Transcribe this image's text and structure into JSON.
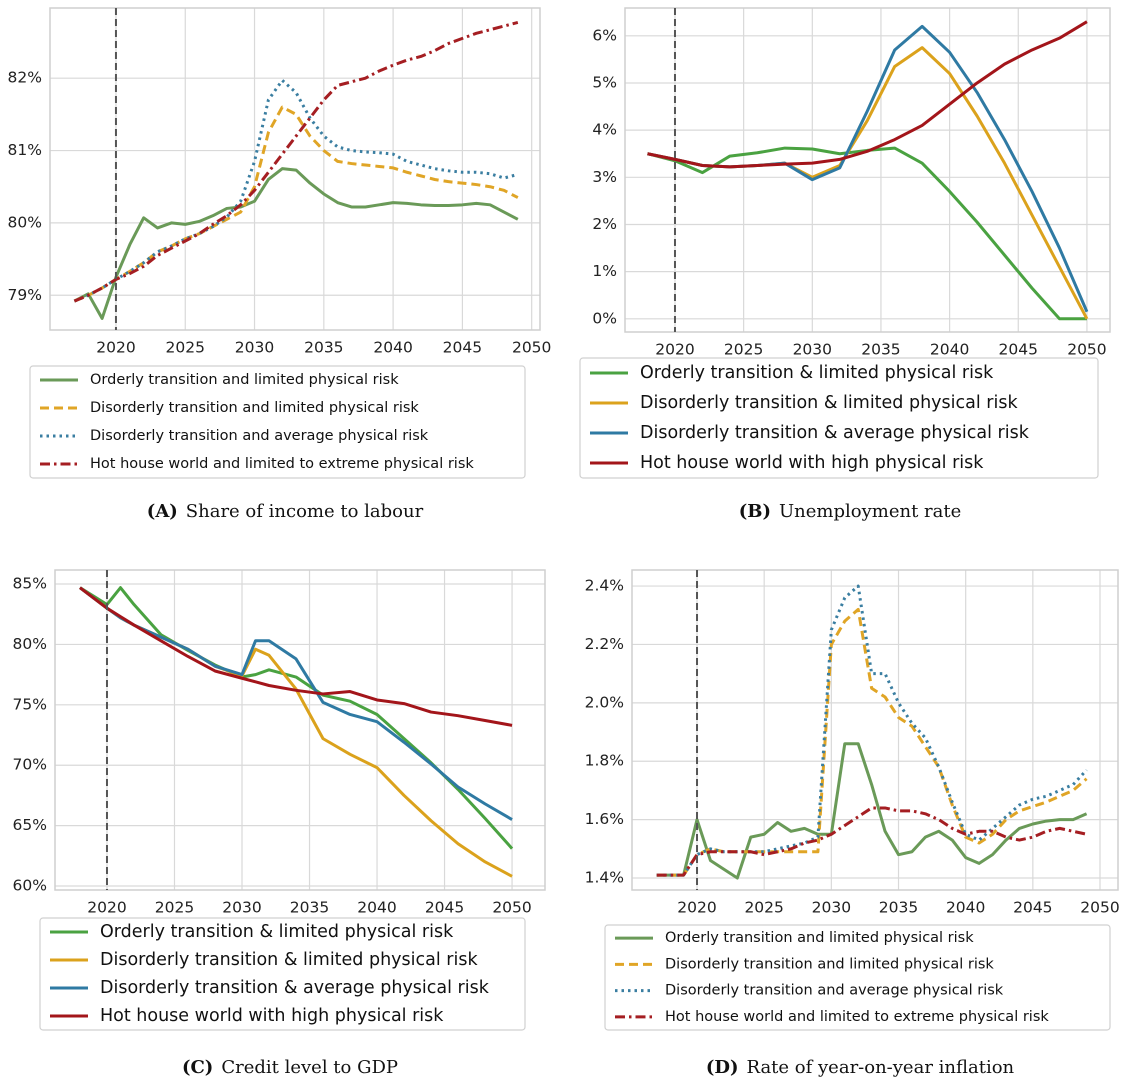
{
  "chart_data": [
    {
      "type": "line",
      "caption_label": "(A)",
      "caption": "Share of income to labour",
      "grid": true,
      "legend": "below",
      "vline": 2020,
      "xlim": [
        2015.24,
        2050.6
      ],
      "ylim": [
        78.52,
        82.97
      ],
      "xticks": [
        2020,
        2025,
        2030,
        2035,
        2040,
        2045,
        2050
      ],
      "yticks": [
        {
          "value": 79,
          "label": "79%"
        },
        {
          "value": 80,
          "label": "80%"
        },
        {
          "value": 81,
          "label": "81%"
        },
        {
          "value": 82,
          "label": "82%"
        }
      ],
      "x": [
        2017,
        2018,
        2019,
        2020,
        2021,
        2022,
        2023,
        2024,
        2025,
        2026,
        2027,
        2028,
        2029,
        2030,
        2031,
        2032,
        2033,
        2034,
        2035,
        2036,
        2037,
        2038,
        2039,
        2040,
        2041,
        2042,
        2043,
        2044,
        2045,
        2046,
        2047,
        2048,
        2049
      ],
      "series": [
        {
          "name": "Orderly transition and limited physical risk",
          "color": "#6a9a58",
          "dash": "solid",
          "values": [
            78.92,
            79.02,
            78.68,
            79.25,
            79.7,
            80.07,
            79.93,
            80.0,
            79.98,
            80.02,
            80.1,
            80.2,
            80.22,
            80.3,
            80.6,
            80.75,
            80.73,
            80.55,
            80.4,
            80.28,
            80.22,
            80.22,
            80.25,
            80.28,
            80.27,
            80.25,
            80.24,
            80.24,
            80.25,
            80.27,
            80.25,
            80.15,
            80.05
          ]
        },
        {
          "name": "Disorderly transition and limited physical risk",
          "color": "#e0a526",
          "dash": "dashed",
          "values": [
            78.92,
            79.0,
            79.1,
            79.22,
            79.33,
            79.45,
            79.6,
            79.68,
            79.78,
            79.85,
            79.95,
            80.05,
            80.15,
            80.5,
            81.25,
            81.6,
            81.5,
            81.2,
            81.0,
            80.85,
            80.82,
            80.8,
            80.78,
            80.76,
            80.7,
            80.65,
            80.6,
            80.57,
            80.55,
            80.53,
            80.5,
            80.45,
            80.35
          ]
        },
        {
          "name": "Disorderly transition and average physical risk",
          "color": "#3a7ea1",
          "dash": "dotted",
          "values": [
            78.92,
            79.0,
            79.1,
            79.22,
            79.33,
            79.45,
            79.6,
            79.68,
            79.78,
            79.85,
            79.95,
            80.08,
            80.3,
            80.85,
            81.7,
            81.97,
            81.8,
            81.45,
            81.2,
            81.05,
            81.0,
            80.98,
            80.97,
            80.95,
            80.85,
            80.8,
            80.75,
            80.72,
            80.7,
            80.7,
            80.68,
            80.62,
            80.67
          ]
        },
        {
          "name": "Hot house world and limited to extreme physical risk",
          "color": "#a51e22",
          "dash": "dashdot",
          "values": [
            78.92,
            79.0,
            79.1,
            79.22,
            79.3,
            79.4,
            79.55,
            79.65,
            79.75,
            79.85,
            79.98,
            80.1,
            80.25,
            80.45,
            80.7,
            80.95,
            81.2,
            81.45,
            81.7,
            81.9,
            81.95,
            82.0,
            82.1,
            82.18,
            82.25,
            82.3,
            82.38,
            82.48,
            82.55,
            82.62,
            82.67,
            82.72,
            82.77
          ]
        }
      ]
    },
    {
      "type": "line",
      "caption_label": "(B)",
      "caption": "Unemployment rate",
      "grid": true,
      "legend": "below",
      "vline": 2020,
      "xlim": [
        2016.36,
        2051.68
      ],
      "ylim": [
        -0.28,
        6.59
      ],
      "xticks": [
        2020,
        2025,
        2030,
        2035,
        2040,
        2045,
        2050
      ],
      "yticks": [
        {
          "value": 0,
          "label": "0%"
        },
        {
          "value": 1,
          "label": "1%"
        },
        {
          "value": 2,
          "label": "2%"
        },
        {
          "value": 3,
          "label": "3%"
        },
        {
          "value": 4,
          "label": "4%"
        },
        {
          "value": 5,
          "label": "5%"
        },
        {
          "value": 6,
          "label": "6%"
        }
      ],
      "x": [
        2018,
        2020,
        2022,
        2024,
        2026,
        2028,
        2030,
        2032,
        2034,
        2036,
        2038,
        2040,
        2042,
        2044,
        2046,
        2048,
        2050
      ],
      "series": [
        {
          "name": "Orderly transition & limited physical risk",
          "color": "#4aa241",
          "dash": "solid",
          "values": [
            3.5,
            3.35,
            3.1,
            3.45,
            3.52,
            3.62,
            3.6,
            3.5,
            3.57,
            3.62,
            3.3,
            2.7,
            2.05,
            1.35,
            0.65,
            0.0,
            0.0
          ]
        },
        {
          "name": "Disorderly transition & limited physical risk",
          "color": "#dba21c",
          "dash": "solid",
          "values": [
            3.5,
            3.38,
            3.25,
            3.22,
            3.25,
            3.3,
            3.0,
            3.25,
            4.2,
            5.35,
            5.75,
            5.2,
            4.3,
            3.3,
            2.2,
            1.1,
            0.0
          ]
        },
        {
          "name": "Disorderly transition & average physical risk",
          "color": "#2f7aa3",
          "dash": "solid",
          "values": [
            3.5,
            3.38,
            3.25,
            3.22,
            3.25,
            3.3,
            2.95,
            3.2,
            4.4,
            5.7,
            6.2,
            5.65,
            4.8,
            3.8,
            2.7,
            1.5,
            0.15
          ]
        },
        {
          "name": "Hot house world with high physical risk",
          "color": "#a3151a",
          "dash": "solid",
          "values": [
            3.5,
            3.38,
            3.25,
            3.22,
            3.25,
            3.28,
            3.3,
            3.38,
            3.55,
            3.8,
            4.1,
            4.55,
            5.0,
            5.4,
            5.7,
            5.95,
            6.3
          ]
        }
      ]
    },
    {
      "type": "line",
      "caption_label": "(C)",
      "caption": "Credit level to GDP",
      "grid": true,
      "legend": "below",
      "vline": 2020,
      "xlim": [
        2016.15,
        2052.44
      ],
      "ylim": [
        59.67,
        86.16
      ],
      "xticks": [
        2020,
        2025,
        2030,
        2035,
        2040,
        2045,
        2050
      ],
      "yticks": [
        {
          "value": 60,
          "label": "60%"
        },
        {
          "value": 65,
          "label": "65%"
        },
        {
          "value": 70,
          "label": "70%"
        },
        {
          "value": 75,
          "label": "75%"
        },
        {
          "value": 80,
          "label": "80%"
        },
        {
          "value": 85,
          "label": "85%"
        }
      ],
      "x": [
        2018,
        2020,
        2021,
        2022,
        2024,
        2026,
        2028,
        2030,
        2031,
        2032,
        2034,
        2036,
        2038,
        2040,
        2042,
        2044,
        2046,
        2048,
        2050
      ],
      "series": [
        {
          "name": "Orderly transition & limited physical risk",
          "color": "#4aa241",
          "dash": "solid",
          "values": [
            84.7,
            83.3,
            84.7,
            83.3,
            80.8,
            79.5,
            78.3,
            77.3,
            77.5,
            77.9,
            77.3,
            75.8,
            75.3,
            74.2,
            72.2,
            70.2,
            68.0,
            65.6,
            63.1
          ]
        },
        {
          "name": "Disorderly transition & limited physical risk",
          "color": "#dba21c",
          "dash": "solid",
          "values": [
            84.7,
            83.0,
            82.2,
            81.6,
            80.6,
            79.6,
            78.2,
            77.4,
            79.6,
            79.1,
            76.3,
            72.2,
            70.9,
            69.8,
            67.5,
            65.4,
            63.5,
            62.0,
            60.8
          ]
        },
        {
          "name": "Disorderly transition & average physical risk",
          "color": "#2f7aa3",
          "dash": "solid",
          "values": [
            84.7,
            83.0,
            82.2,
            81.6,
            80.6,
            79.6,
            78.2,
            77.5,
            80.3,
            80.3,
            78.8,
            75.2,
            74.2,
            73.6,
            71.9,
            70.1,
            68.2,
            66.8,
            65.5
          ]
        },
        {
          "name": "Hot house world with high physical risk",
          "color": "#a3151a",
          "dash": "solid",
          "values": [
            84.7,
            83.0,
            82.3,
            81.6,
            80.3,
            79.0,
            77.8,
            77.2,
            76.9,
            76.6,
            76.2,
            75.9,
            76.1,
            75.4,
            75.1,
            74.4,
            74.1,
            73.7,
            73.3
          ]
        }
      ]
    },
    {
      "type": "line",
      "caption_label": "(D)",
      "caption": "Rate of year-on-year inflation",
      "grid": true,
      "legend": "below",
      "vline": 2020,
      "xlim": [
        2015.16,
        2051.34
      ],
      "ylim": [
        1.359,
        2.455
      ],
      "xticks": [
        2020,
        2025,
        2030,
        2035,
        2040,
        2045,
        2050
      ],
      "yticks": [
        {
          "value": 1.4,
          "label": "1.4%"
        },
        {
          "value": 1.6,
          "label": "1.6%"
        },
        {
          "value": 1.8,
          "label": "1.8%"
        },
        {
          "value": 2.0,
          "label": "2.0%"
        },
        {
          "value": 2.2,
          "label": "2.2%"
        },
        {
          "value": 2.4,
          "label": "2.4%"
        }
      ],
      "x": [
        2017,
        2018,
        2019,
        2020,
        2021,
        2022,
        2023,
        2024,
        2025,
        2026,
        2027,
        2028,
        2029,
        2030,
        2031,
        2032,
        2033,
        2034,
        2035,
        2036,
        2037,
        2038,
        2039,
        2040,
        2041,
        2042,
        2043,
        2044,
        2045,
        2046,
        2047,
        2048,
        2049
      ],
      "series": [
        {
          "name": "Orderly transition and limited physical risk",
          "color": "#6a9a58",
          "dash": "solid",
          "values": [
            1.41,
            1.41,
            1.41,
            1.6,
            1.46,
            1.43,
            1.4,
            1.54,
            1.55,
            1.59,
            1.56,
            1.57,
            1.55,
            1.55,
            1.86,
            1.86,
            1.72,
            1.56,
            1.48,
            1.49,
            1.54,
            1.56,
            1.53,
            1.47,
            1.45,
            1.48,
            1.53,
            1.57,
            1.585,
            1.595,
            1.6,
            1.6,
            1.62
          ]
        },
        {
          "name": "Disorderly transition and limited physical risk",
          "color": "#e0a526",
          "dash": "dashed",
          "values": [
            1.41,
            1.41,
            1.41,
            1.48,
            1.5,
            1.49,
            1.49,
            1.49,
            1.49,
            1.49,
            1.49,
            1.49,
            1.49,
            2.2,
            2.28,
            2.32,
            2.05,
            2.02,
            1.95,
            1.92,
            1.85,
            1.78,
            1.65,
            1.54,
            1.52,
            1.55,
            1.6,
            1.63,
            1.645,
            1.66,
            1.68,
            1.7,
            1.74
          ]
        },
        {
          "name": "Disorderly transition and average physical risk",
          "color": "#3a7ea1",
          "dash": "dotted",
          "values": [
            1.41,
            1.41,
            1.41,
            1.48,
            1.5,
            1.49,
            1.49,
            1.49,
            1.49,
            1.5,
            1.51,
            1.52,
            1.54,
            2.25,
            2.36,
            2.4,
            2.1,
            2.1,
            2.0,
            1.93,
            1.88,
            1.78,
            1.66,
            1.55,
            1.53,
            1.57,
            1.61,
            1.65,
            1.67,
            1.68,
            1.7,
            1.72,
            1.77
          ]
        },
        {
          "name": "Hot house world and limited to extreme physical risk",
          "color": "#a51e22",
          "dash": "dashdot",
          "values": [
            1.41,
            1.41,
            1.41,
            1.48,
            1.49,
            1.49,
            1.49,
            1.49,
            1.48,
            1.49,
            1.5,
            1.52,
            1.53,
            1.55,
            1.58,
            1.61,
            1.64,
            1.64,
            1.63,
            1.63,
            1.62,
            1.6,
            1.57,
            1.55,
            1.56,
            1.56,
            1.54,
            1.53,
            1.54,
            1.56,
            1.57,
            1.56,
            1.55
          ]
        }
      ]
    }
  ]
}
